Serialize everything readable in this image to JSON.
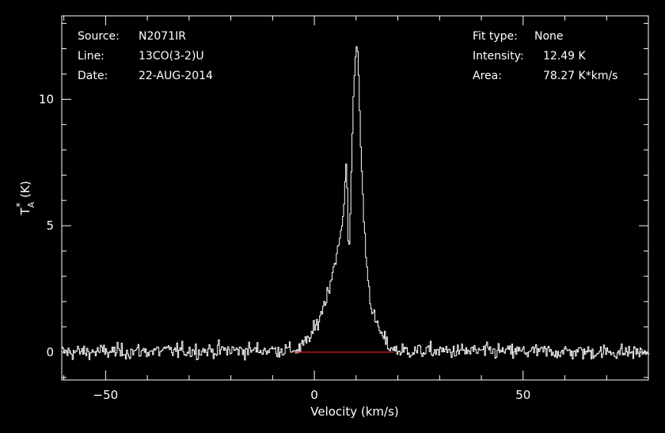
{
  "header": {
    "source_label": "Source:",
    "source_value": "N2071IR",
    "line_label": "Line:",
    "line_value": "13CO(3-2)U",
    "date_label": "Date:",
    "date_value": "22-AUG-2014",
    "fit_label": "Fit type:",
    "fit_value": "None",
    "intensity_label": "Intensity:",
    "intensity_value": "12.49 K",
    "area_label": "Area:",
    "area_value": "78.27 K*km/s"
  },
  "colors": {
    "background": "#000000",
    "foreground": "#ffffff",
    "baseline": "#d02020"
  },
  "chart_data": {
    "type": "line",
    "style": "histogram-step",
    "xlabel": "Velocity (km/s)",
    "ylabel_main": "T",
    "ylabel_sub": "A",
    "ylabel_sup": "*",
    "ylabel_unit": "(K)",
    "xlim": [
      -60.5,
      80
    ],
    "ylim": [
      -1.1,
      13.3
    ],
    "xticks": [
      -50,
      0,
      50
    ],
    "xtick_labels": [
      "−50",
      "0",
      "50"
    ],
    "yticks": [
      0,
      5,
      10
    ],
    "ytick_labels": [
      "0",
      "5",
      "10"
    ],
    "baseline": {
      "y": 0,
      "from_x": -5,
      "to_x": 19,
      "color": "#d02020"
    },
    "grid": false,
    "legend": "none",
    "series": [
      {
        "color": "#ffffff",
        "noise_rms": 0.15,
        "x": [
          -60.5,
          -4,
          -2,
          0,
          1,
          2,
          3,
          4,
          5,
          6,
          6.5,
          7,
          7.5,
          7.8,
          8,
          8.3,
          8.6,
          8.9,
          9.2,
          9.5,
          9.8,
          10.1,
          10.4,
          10.7,
          11,
          11.4,
          11.8,
          12.2,
          12.6,
          13,
          13.5,
          14,
          15,
          16,
          17,
          18,
          20,
          80
        ],
        "y": [
          0,
          0.1,
          0.4,
          0.9,
          1.3,
          1.8,
          2.3,
          3.0,
          3.7,
          4.4,
          5.0,
          5.8,
          7.6,
          6.3,
          4.3,
          4.3,
          6.3,
          8.2,
          10.0,
          10.8,
          11.5,
          12.49,
          11.4,
          9.8,
          8.2,
          6.5,
          5.1,
          4.0,
          3.2,
          2.5,
          1.9,
          1.5,
          1.0,
          0.7,
          0.4,
          0.2,
          0.05,
          0
        ]
      }
    ]
  }
}
